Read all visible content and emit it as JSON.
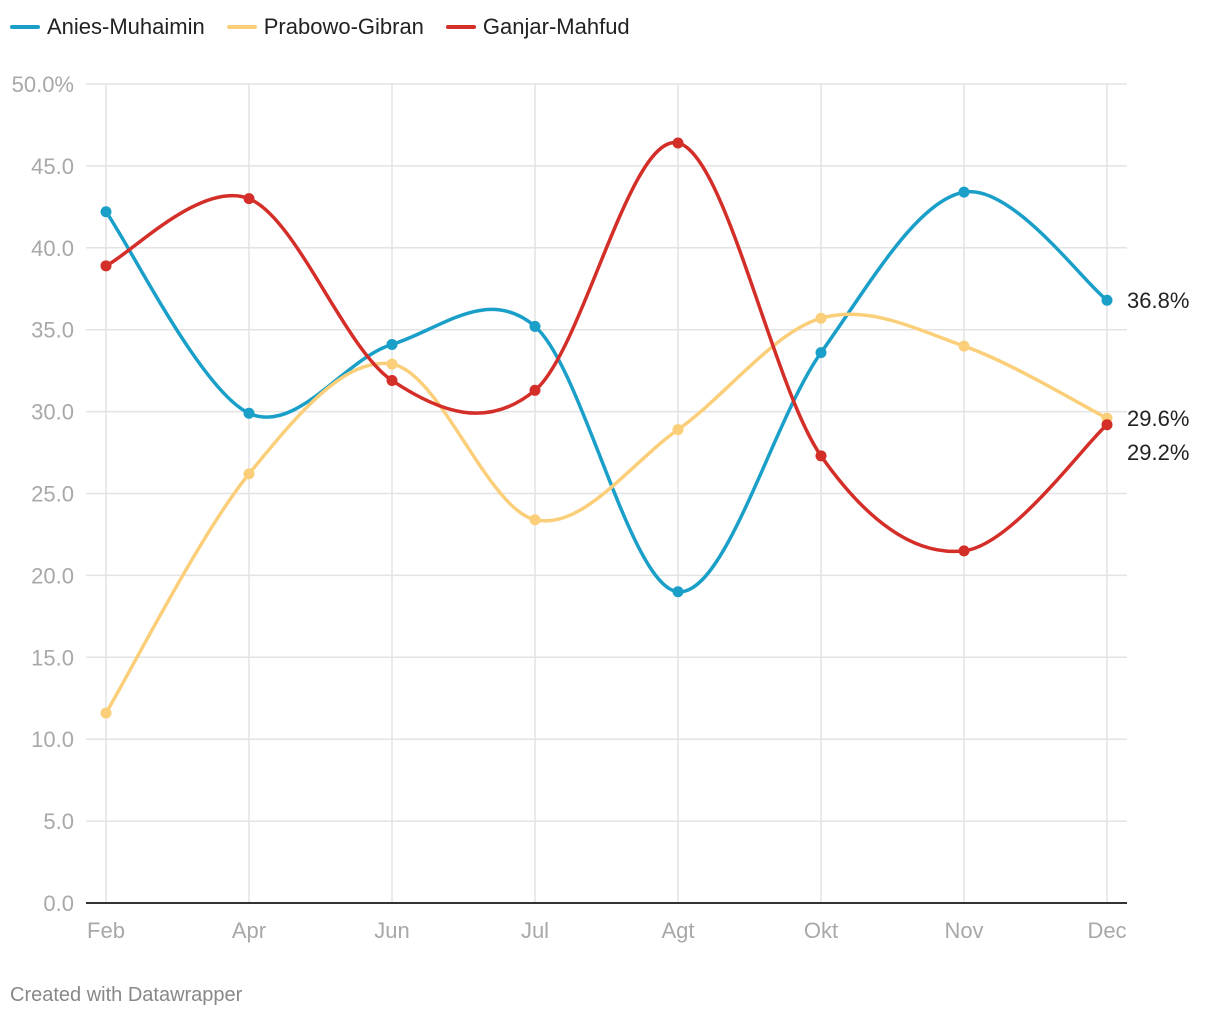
{
  "chart_data": {
    "type": "line",
    "title": "",
    "xlabel": "",
    "ylabel": "",
    "categories": [
      "Feb",
      "Apr",
      "Jun",
      "Jul",
      "Agt",
      "Okt",
      "Nov",
      "Dec"
    ],
    "ylim": [
      0,
      50
    ],
    "yticks": [
      {
        "value": 0,
        "label": "0.0"
      },
      {
        "value": 5,
        "label": "5.0"
      },
      {
        "value": 10,
        "label": "10.0"
      },
      {
        "value": 15,
        "label": "15.0"
      },
      {
        "value": 20,
        "label": "20.0"
      },
      {
        "value": 25,
        "label": "25.0"
      },
      {
        "value": 30,
        "label": "30.0"
      },
      {
        "value": 35,
        "label": "35.0"
      },
      {
        "value": 40,
        "label": "40.0"
      },
      {
        "value": 45,
        "label": "45.0"
      },
      {
        "value": 50,
        "label": "50.0%"
      }
    ],
    "grid": true,
    "legend": "top-left",
    "series": [
      {
        "name": "Anies-Muhaimin",
        "color": "#1a9fc9",
        "values": [
          42.2,
          29.9,
          34.1,
          35.2,
          19.0,
          33.6,
          43.4,
          36.8
        ],
        "end_label": "36.8%"
      },
      {
        "name": "Prabowo-Gibran",
        "color": "#fbcf7a",
        "values": [
          11.6,
          26.2,
          32.9,
          23.4,
          28.9,
          35.7,
          34.0,
          29.6
        ],
        "end_label": "29.6%"
      },
      {
        "name": "Ganjar-Mahfud",
        "color": "#d42e29",
        "values": [
          38.9,
          43.0,
          31.9,
          31.3,
          46.4,
          27.3,
          21.5,
          29.2
        ],
        "end_label": "29.2%"
      }
    ]
  },
  "footer": {
    "credit": "Created with Datawrapper"
  }
}
